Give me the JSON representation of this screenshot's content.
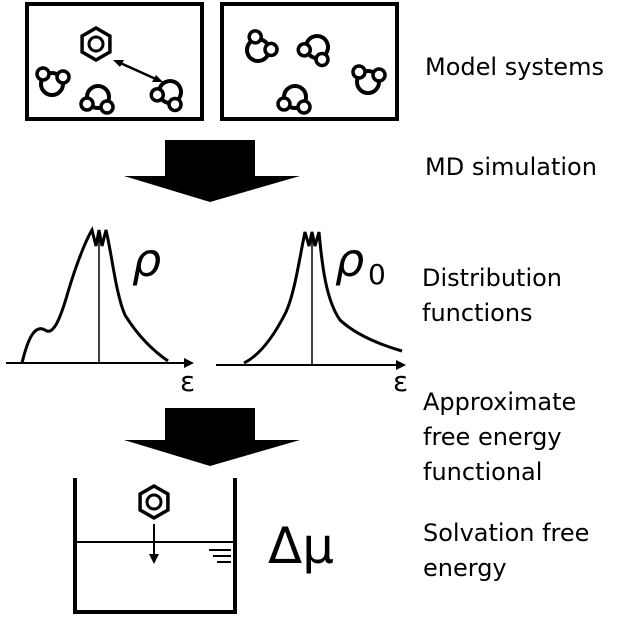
{
  "labels": {
    "model_systems": "Model systems",
    "md_simulation": "MD simulation",
    "distribution_line1": "Distribution",
    "distribution_line2": "functions",
    "approx_line1": "Approximate",
    "approx_line2": "free energy",
    "approx_line3": "functional",
    "solvation_line1": "Solvation free",
    "solvation_line2": "energy"
  },
  "symbols": {
    "rho": "ρ",
    "rho0_base": "ρ",
    "rho0_sub": "0",
    "epsilon_left": "ε",
    "epsilon_right": "ε",
    "delta_mu": "Δμ"
  },
  "colors": {
    "ink": "#000000",
    "background": "#ffffff"
  }
}
